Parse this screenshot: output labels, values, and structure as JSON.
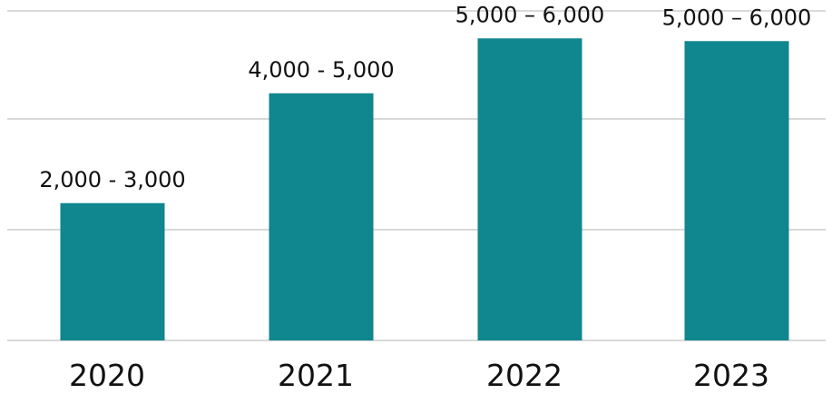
{
  "colors": {
    "bar": "#10868f",
    "grid": "#d9d9d9",
    "text": "#111111"
  },
  "chart_data": {
    "type": "bar",
    "title": "",
    "xlabel": "",
    "ylabel": "",
    "categories": [
      "2020",
      "2021",
      "2022",
      "2023"
    ],
    "values": [
      2500,
      4500,
      5500,
      5450
    ],
    "data_labels": [
      "2,000 - 3,000",
      "4,000 - 5,000",
      "5,000 – 6,000",
      "5,000 – 6,000"
    ],
    "ylim": [
      0,
      6000
    ],
    "grid": true,
    "y_axis_labels_shown": false,
    "legend": "none"
  }
}
